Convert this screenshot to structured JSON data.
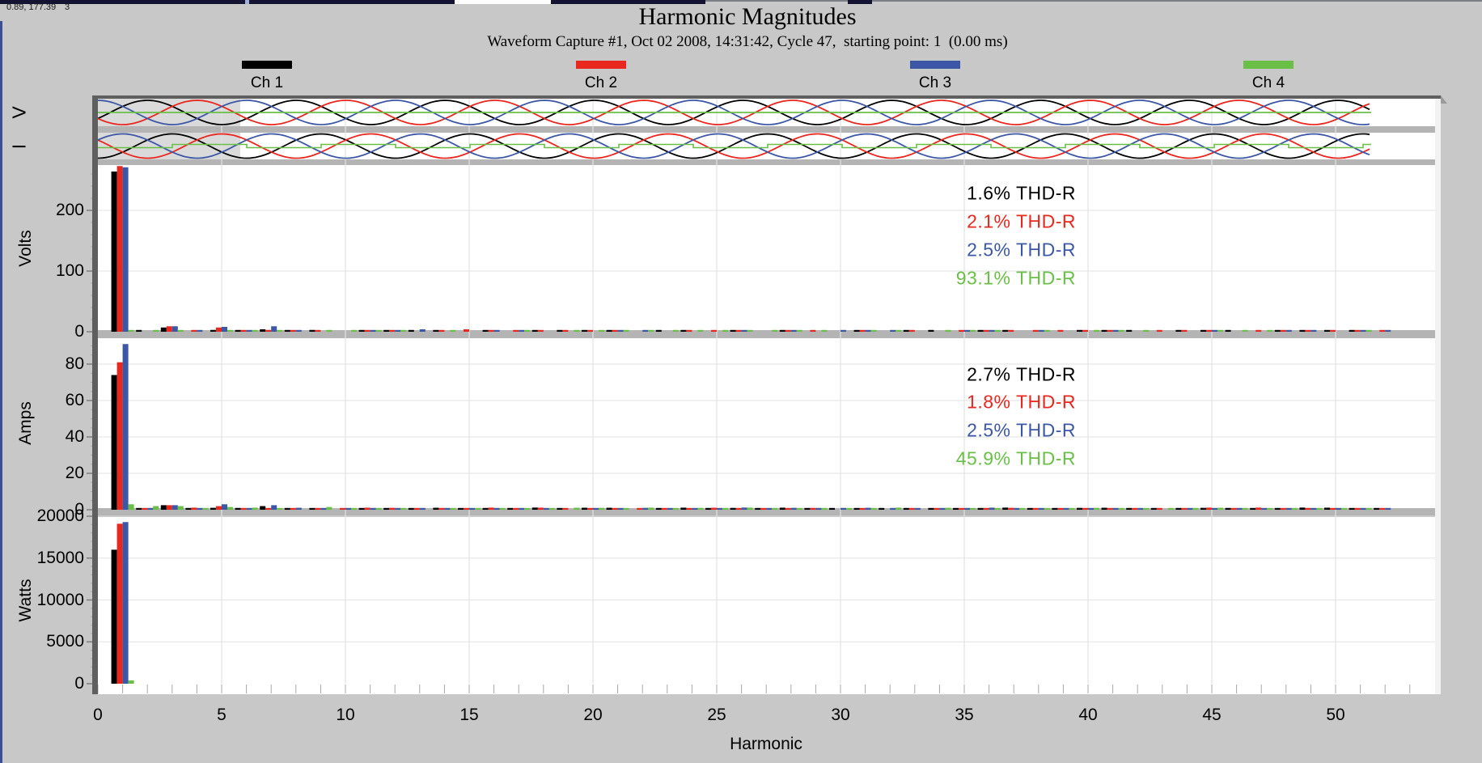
{
  "window": {
    "background": "#c8c8c8",
    "cursor_readout": "0.89, 177.39",
    "cursor_readout_suffix": "3"
  },
  "header": {
    "title": "Harmonic Magnitudes",
    "subtitle": "Waveform Capture #1, Oct 02 2008, 14:31:42, Cycle 47,  starting point: 1  (0.00 ms)"
  },
  "legend": {
    "items": [
      {
        "label": "Ch 1",
        "color": "#000000"
      },
      {
        "label": "Ch 2",
        "color": "#e8271f"
      },
      {
        "label": "Ch 3",
        "color": "#3c57a5"
      },
      {
        "label": "Ch 4",
        "color": "#6abf47"
      }
    ]
  },
  "waveform_strip": {
    "row_labels": [
      "V",
      "I"
    ],
    "cycles_visible": 8.6,
    "highlighted_region": "first cycle selected",
    "channels": [
      "Ch 1",
      "Ch 2",
      "Ch 3",
      "Ch 4"
    ]
  },
  "x_axis": {
    "label": "Harmonic",
    "ticks": [
      0,
      5,
      10,
      15,
      20,
      25,
      30,
      35,
      40,
      45,
      50
    ],
    "minor_tick_step": 1,
    "range": [
      0,
      54
    ]
  },
  "thd_readouts": {
    "volts": [
      {
        "text": "1.6% THD-R",
        "color": "#000000"
      },
      {
        "text": "2.1% THD-R",
        "color": "#e8271f"
      },
      {
        "text": "2.5% THD-R",
        "color": "#3c57a5"
      },
      {
        "text": "93.1% THD-R",
        "color": "#6abf47"
      }
    ],
    "amps": [
      {
        "text": "2.7% THD-R",
        "color": "#000000"
      },
      {
        "text": "1.8% THD-R",
        "color": "#e8271f"
      },
      {
        "text": "2.5% THD-R",
        "color": "#3c57a5"
      },
      {
        "text": "45.9% THD-R",
        "color": "#6abf47"
      }
    ]
  },
  "chart_data": [
    {
      "type": "line",
      "name": "waveform_preview",
      "rows": [
        "V",
        "I"
      ],
      "channels": [
        "Ch 1",
        "Ch 2",
        "Ch 3",
        "Ch 4"
      ],
      "description": "Three-phase sinusoids (Ch1 black, Ch2 red, Ch3 blue) about 8.6 cycles; Ch4 green is a near-zero flat trace; first cycle shaded as the selected cycle",
      "v_phase_deg": [
        -30,
        -150,
        90,
        0
      ],
      "i_phase_deg": [
        -90,
        150,
        30,
        0
      ]
    },
    {
      "type": "bar",
      "ylabel": "Volts",
      "yticks": [
        0,
        100,
        200
      ],
      "y_minor_step": 20,
      "ylim": [
        0,
        276
      ],
      "thd_r_percent": [
        1.6,
        2.1,
        2.5,
        93.1
      ],
      "series": [
        {
          "name": "Ch 1",
          "color": "#000000",
          "values": {
            "1": 264,
            "3": 7,
            "5": 3,
            "7": 4,
            "9": 3
          }
        },
        {
          "name": "Ch 2",
          "color": "#e8271f",
          "values": {
            "1": 273,
            "3": 9,
            "5": 7,
            "7": 3,
            "15": 4
          }
        },
        {
          "name": "Ch 3",
          "color": "#3c57a5",
          "values": {
            "1": 271,
            "3": 9,
            "5": 8,
            "7": 9,
            "13": 4
          }
        },
        {
          "name": "Ch 4",
          "color": "#6abf47",
          "values": {
            "1": 2,
            "3": 2,
            "5": 1.5
          }
        }
      ],
      "noise_floor": 1.5
    },
    {
      "type": "bar",
      "ylabel": "Amps",
      "yticks": [
        0,
        20,
        40,
        60,
        80
      ],
      "y_minor_step": 5,
      "ylim": [
        0,
        95
      ],
      "thd_r_percent": [
        2.7,
        1.8,
        2.5,
        45.9
      ],
      "series": [
        {
          "name": "Ch 1",
          "color": "#000000",
          "values": {
            "1": 74,
            "3": 2.5,
            "7": 2
          }
        },
        {
          "name": "Ch 2",
          "color": "#e8271f",
          "values": {
            "1": 81,
            "3": 2.5,
            "5": 2
          }
        },
        {
          "name": "Ch 3",
          "color": "#3c57a5",
          "values": {
            "1": 91,
            "3": 2.5,
            "5": 3,
            "7": 2.5
          }
        },
        {
          "name": "Ch 4",
          "color": "#6abf47",
          "values": {
            "1": 3,
            "2": 2,
            "3": 2,
            "5": 1.5,
            "9": 1.5
          }
        }
      ],
      "noise_floor": 0.8
    },
    {
      "type": "bar",
      "ylabel": "Watts",
      "yticks": [
        0,
        5000,
        10000,
        15000,
        20000
      ],
      "y_minor_step": 1000,
      "ylim": [
        0,
        20000
      ],
      "series": [
        {
          "name": "Ch 1",
          "color": "#000000",
          "values": {
            "1": 16000
          }
        },
        {
          "name": "Ch 2",
          "color": "#e8271f",
          "values": {
            "1": 19100
          }
        },
        {
          "name": "Ch 3",
          "color": "#3c57a5",
          "values": {
            "1": 19300
          }
        },
        {
          "name": "Ch 4",
          "color": "#6abf47",
          "values": {
            "1": 400
          }
        }
      ],
      "noise_floor": 40
    }
  ]
}
